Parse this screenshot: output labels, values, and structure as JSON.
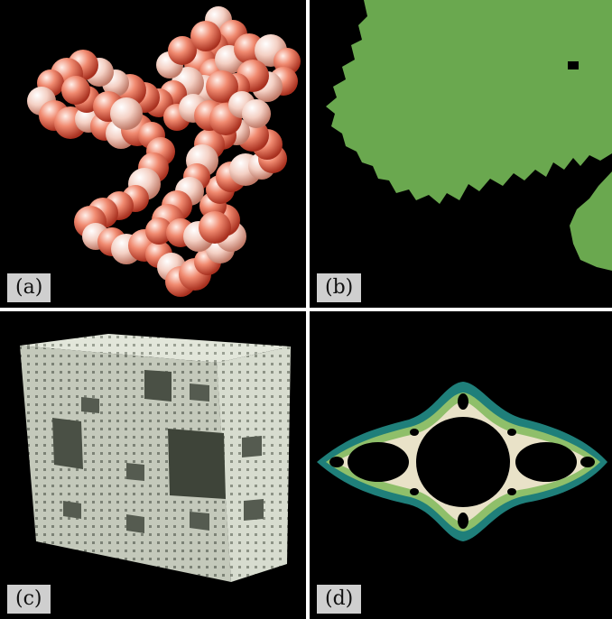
{
  "panels": [
    {
      "id": "a",
      "label": "(a)",
      "subject": "protein-sphere-model"
    },
    {
      "id": "b",
      "label": "(b)",
      "subject": "green-fractal-region"
    },
    {
      "id": "c",
      "label": "(c)",
      "subject": "menger-sponge"
    },
    {
      "id": "d",
      "label": "(d)",
      "subject": "julia-set"
    }
  ],
  "colors": {
    "background": "#000000",
    "separator": "#ffffff",
    "label_bg": "#cfcfcf",
    "sphere_dark": "#d9553c",
    "sphere_light": "#f0c8b8",
    "fractal_green": "#6aa84f",
    "sponge": "#d8ddd0",
    "julia_outer": "#1f7f7a",
    "julia_mid": "#8fbf6a",
    "julia_inner": "#e9e2c8"
  }
}
